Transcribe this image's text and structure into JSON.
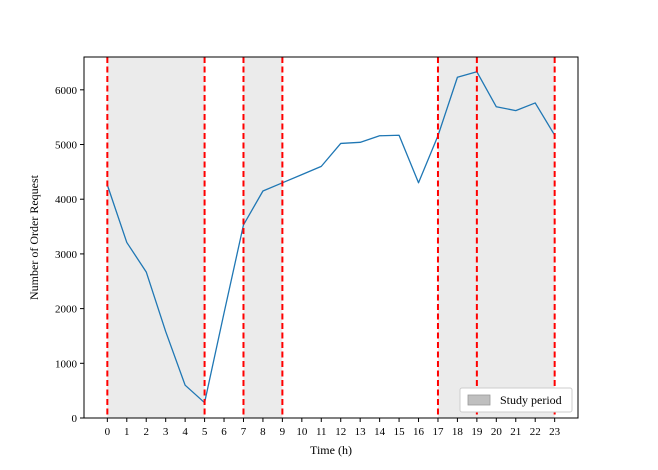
{
  "chart_data": {
    "type": "line",
    "xlabel": "Time (h)",
    "ylabel": "Number of Order Request",
    "xlim": [
      -1.2,
      24.2
    ],
    "ylim": [
      0,
      6600
    ],
    "x_ticks": [
      0,
      1,
      2,
      3,
      4,
      5,
      6,
      7,
      8,
      9,
      10,
      11,
      12,
      13,
      14,
      15,
      16,
      17,
      18,
      19,
      20,
      21,
      22,
      23
    ],
    "y_ticks": [
      0,
      1000,
      2000,
      3000,
      4000,
      5000,
      6000
    ],
    "series": [
      {
        "x": [
          0,
          1,
          2,
          3,
          4,
          5,
          6,
          7,
          8,
          9,
          10,
          11,
          12,
          13,
          14,
          15,
          16,
          17,
          18,
          19,
          20,
          21,
          22,
          23
        ],
        "values": [
          4260,
          3210,
          2670,
          1580,
          600,
          280,
          1920,
          3530,
          4150,
          4300,
          4450,
          4600,
          5020,
          5040,
          5160,
          5170,
          4300,
          5160,
          6230,
          6330,
          5690,
          5620,
          5760,
          5170
        ],
        "color": "#1f77b4"
      }
    ],
    "study_periods": [
      [
        0,
        5
      ],
      [
        7,
        9
      ],
      [
        17,
        23
      ]
    ],
    "vlines": [
      0,
      5,
      7,
      9,
      17,
      19,
      23
    ],
    "vline_color": "#ff0000",
    "shade_color": "#ebebeb",
    "legend": {
      "label": "Study period",
      "placement": "bottom-right"
    },
    "grid": false
  }
}
